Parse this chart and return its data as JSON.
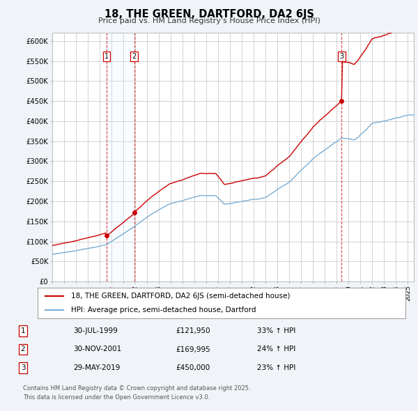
{
  "title": "18, THE GREEN, DARTFORD, DA2 6JS",
  "subtitle": "Price paid vs. HM Land Registry's House Price Index (HPI)",
  "legend_label_red": "18, THE GREEN, DARTFORD, DA2 6JS (semi-detached house)",
  "legend_label_blue": "HPI: Average price, semi-detached house, Dartford",
  "footer": "Contains HM Land Registry data © Crown copyright and database right 2025.\nThis data is licensed under the Open Government Licence v3.0.",
  "transactions": [
    {
      "label": "1",
      "date": "30-JUL-1999",
      "price": "£121,950",
      "hpi": "33% ↑ HPI",
      "year": 1999.58
    },
    {
      "label": "2",
      "date": "30-NOV-2001",
      "price": "£169,995",
      "hpi": "24% ↑ HPI",
      "year": 2001.92
    },
    {
      "label": "3",
      "date": "29-MAY-2019",
      "price": "£450,000",
      "hpi": "23% ↑ HPI",
      "year": 2019.41
    }
  ],
  "transaction_values": [
    121950,
    169995,
    450000
  ],
  "ylim": [
    0,
    620000
  ],
  "yticks": [
    0,
    50000,
    100000,
    150000,
    200000,
    250000,
    300000,
    350000,
    400000,
    450000,
    500000,
    550000,
    600000
  ],
  "ytick_labels": [
    "£0",
    "£50K",
    "£100K",
    "£150K",
    "£200K",
    "£250K",
    "£300K",
    "£350K",
    "£400K",
    "£450K",
    "£500K",
    "£550K",
    "£600K"
  ],
  "xlim_start": 1995.0,
  "xlim_end": 2025.5,
  "background_color": "#f0f4f8",
  "plot_bg_color": "#ffffff",
  "red_color": "#cc0000",
  "blue_color": "#7aadd4",
  "shade_color": "#ddeeff",
  "vline_color": "#cc0000",
  "grid_color": "#cccccc"
}
